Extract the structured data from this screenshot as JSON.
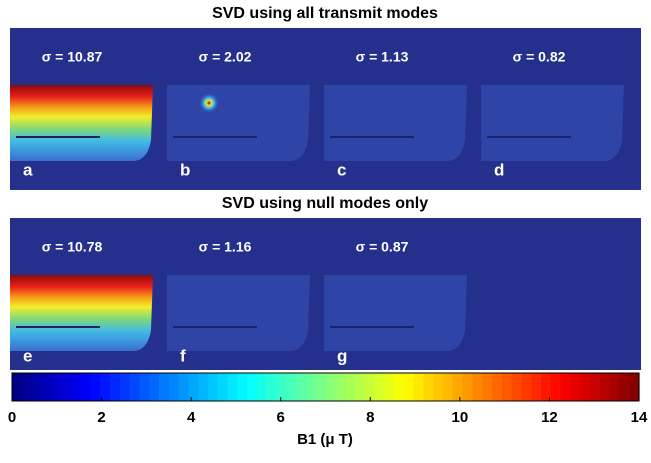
{
  "sections": [
    {
      "title": "SVD using all transmit modes",
      "panels": [
        {
          "sigma": "σ = 10.87",
          "letter": "a"
        },
        {
          "sigma": "σ = 2.02",
          "letter": "b"
        },
        {
          "sigma": "σ = 1.13",
          "letter": "c"
        },
        {
          "sigma": "σ = 0.82",
          "letter": "d"
        }
      ]
    },
    {
      "title": "SVD using null modes only",
      "panels": [
        {
          "sigma": "σ = 10.78",
          "letter": "e"
        },
        {
          "sigma": "σ = 1.16",
          "letter": "f"
        },
        {
          "sigma": "σ = 0.87",
          "letter": "g"
        }
      ]
    }
  ],
  "colorbar": {
    "label": "B1 (μ T)",
    "range": [
      0,
      14
    ],
    "ticks": [
      0,
      2,
      4,
      6,
      8,
      10,
      12,
      14
    ]
  }
}
